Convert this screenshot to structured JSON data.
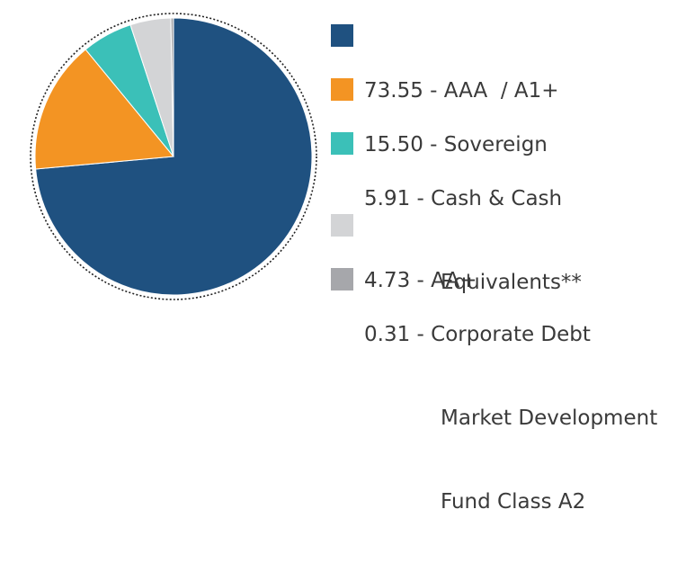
{
  "chart_data": {
    "type": "pie",
    "slices": [
      {
        "value": 73.55,
        "label": "AAA  / A1+",
        "color": "#1f5180"
      },
      {
        "value": 15.5,
        "label": "Sovereign",
        "color": "#f39423"
      },
      {
        "value": 5.91,
        "label": "Cash & Cash Equivalents**",
        "color": "#3bc0b8"
      },
      {
        "value": 4.73,
        "label": "AA+",
        "color": "#d3d4d6"
      },
      {
        "value": 0.31,
        "label": "Corporate Debt Market Development Fund Class A2",
        "color": "#a6a7ab"
      }
    ],
    "legend": {
      "placement": "right",
      "items": [
        {
          "lines": [
            "73.55 - AAA  / A1+"
          ]
        },
        {
          "lines": [
            "15.50 - Sovereign"
          ]
        },
        {
          "lines": [
            "5.91 - Cash & Cash",
            "Equivalents**"
          ]
        },
        {
          "lines": [
            "4.73 - AA+"
          ]
        },
        {
          "lines": [
            "0.31 - Corporate Debt",
            "Market Development",
            "Fund Class A2"
          ]
        }
      ]
    },
    "border": "dotted"
  }
}
